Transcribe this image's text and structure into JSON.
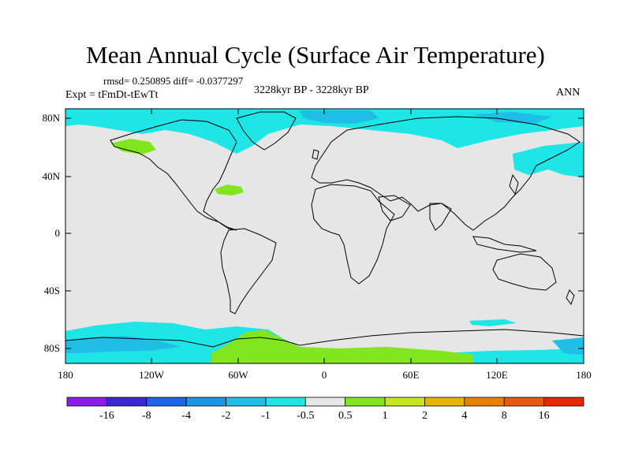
{
  "title": "Mean Annual Cycle (Surface Air Temperature)",
  "stats": "rmsd= 0.250895  diff= -0.0377297",
  "subtitle": "3228kyr BP - 3228kyr BP",
  "experiment": "Expt = tFmDt-tEwTt",
  "season": "ANN",
  "lat_labels": [
    "80N",
    "40N",
    "0",
    "40S",
    "80S"
  ],
  "lon_labels": [
    "180",
    "120W",
    "60W",
    "0",
    "60E",
    "120E",
    "180"
  ],
  "colorbar": {
    "labels": [
      "-16",
      "-8",
      "-4",
      "-2",
      "-1",
      "-0.5",
      "0.5",
      "1",
      "2",
      "4",
      "8",
      "16"
    ],
    "colors": [
      "#8a1ee6",
      "#3c28d2",
      "#1e64e6",
      "#1e96e6",
      "#1ebee6",
      "#1ee6e6",
      "#e6e6e6",
      "#82e61e",
      "#c8e61e",
      "#e6b400",
      "#e68200",
      "#e65a14",
      "#e62800"
    ]
  },
  "colors": {
    "background": "#e6e6e6",
    "negative_anomaly": "#1ee6e6",
    "negative_anomaly_strong": "#1ebee6",
    "positive_anomaly": "#82e61e"
  }
}
